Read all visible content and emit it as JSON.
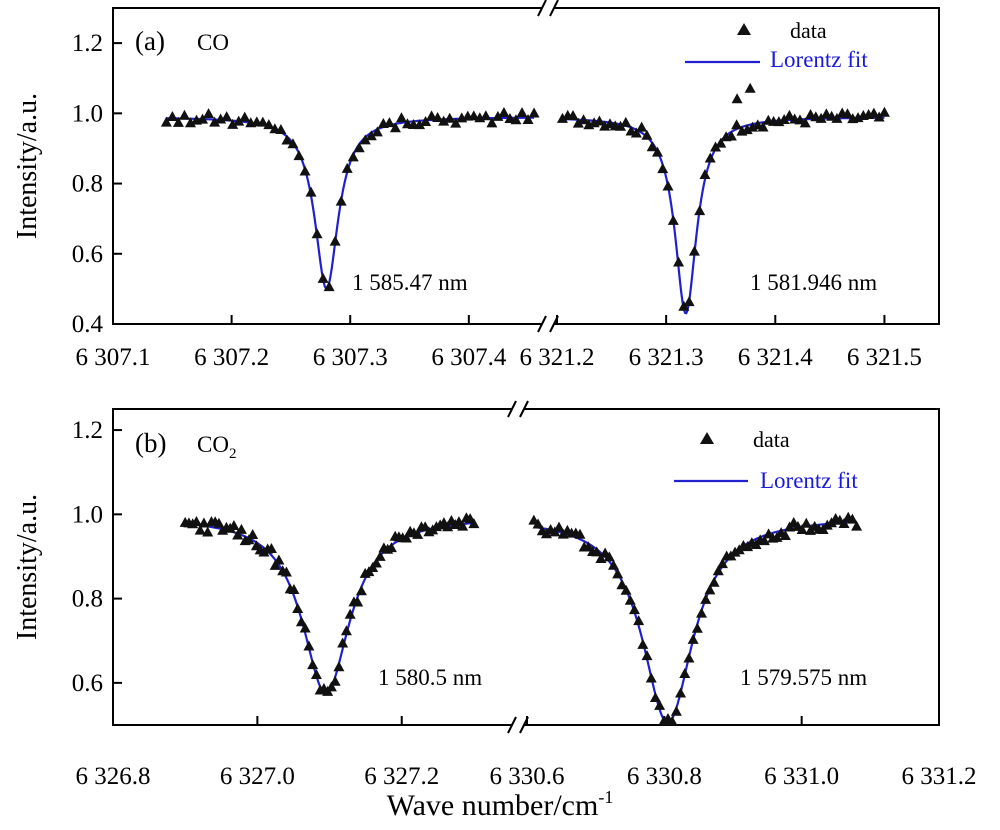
{
  "figure": {
    "xlabel": "Wave number/cm",
    "xlabel_sup": "-1"
  },
  "legend": {
    "data": "data",
    "fit": "Lorentz fit"
  },
  "chart_data": [
    {
      "type": "scatter",
      "panel_label": "(a)",
      "species": "CO",
      "species_sub": "",
      "ylabel": "Intensity/a.u.",
      "ylim": [
        0.4,
        1.3
      ],
      "yticks": [
        "0.4",
        "0.6",
        "0.8",
        "1.0",
        "1.2"
      ],
      "series": [
        {
          "name": "data",
          "marker": "triangle"
        },
        {
          "name": "Lorentz fit",
          "color": "#2020d0"
        }
      ],
      "segments": [
        {
          "xlim": [
            6307.1,
            6307.46
          ],
          "xticks": [
            "6 307.1",
            "6 307.2",
            "6 307.3",
            "6 307.4"
          ],
          "peak_label": "1 585.47 nm",
          "fit": {
            "center": 6307.28,
            "depth": 0.49,
            "hwhm": 0.012,
            "baseline": 0.99,
            "x_range": [
              6307.145,
              6307.455
            ]
          },
          "outliers": []
        },
        {
          "xlim": [
            6321.2,
            6321.55
          ],
          "xticks": [
            "6 321.2",
            "6 321.3",
            "6 321.4",
            "6 321.5"
          ],
          "peak_label": "1 581.946 nm",
          "fit": {
            "center": 6321.318,
            "depth": 0.56,
            "hwhm": 0.012,
            "baseline": 0.99,
            "x_range": [
              6321.205,
              6321.5
            ]
          },
          "outliers": [
            {
              "x": 6321.377,
              "y": 1.07
            },
            {
              "x": 6321.365,
              "y": 1.04
            }
          ]
        }
      ]
    },
    {
      "type": "scatter",
      "panel_label": "(b)",
      "species": "CO",
      "species_sub": "2",
      "ylabel": "Intensity/a.u.",
      "ylim": [
        0.5,
        1.25
      ],
      "yticks": [
        "0.6",
        "0.8",
        "1.0",
        "1.2"
      ],
      "series": [
        {
          "name": "data",
          "marker": "triangle"
        },
        {
          "name": "Lorentz fit",
          "color": "#2020d0"
        }
      ],
      "segments": [
        {
          "xlim": [
            6326.8,
            6327.35
          ],
          "xticks": [
            "6 326.8",
            "6 327.0",
            "6 327.2"
          ],
          "peak_label": "1 580.5 nm",
          "fit": {
            "center": 6327.095,
            "depth": 0.42,
            "hwhm": 0.04,
            "baseline": 0.995,
            "x_range": [
              6326.9,
              6327.3
            ]
          },
          "outliers": []
        },
        {
          "xlim": [
            6330.6,
            6331.2
          ],
          "xticks": [
            "6 330.6",
            "6 330.8",
            "6 331.0",
            "6 331.2"
          ],
          "peak_label": "1 579.575 nm",
          "fit": {
            "center": 6330.805,
            "depth": 0.49,
            "hwhm": 0.045,
            "baseline": 0.995,
            "x_range": [
              6330.61,
              6331.08
            ]
          },
          "outliers": []
        }
      ]
    }
  ]
}
